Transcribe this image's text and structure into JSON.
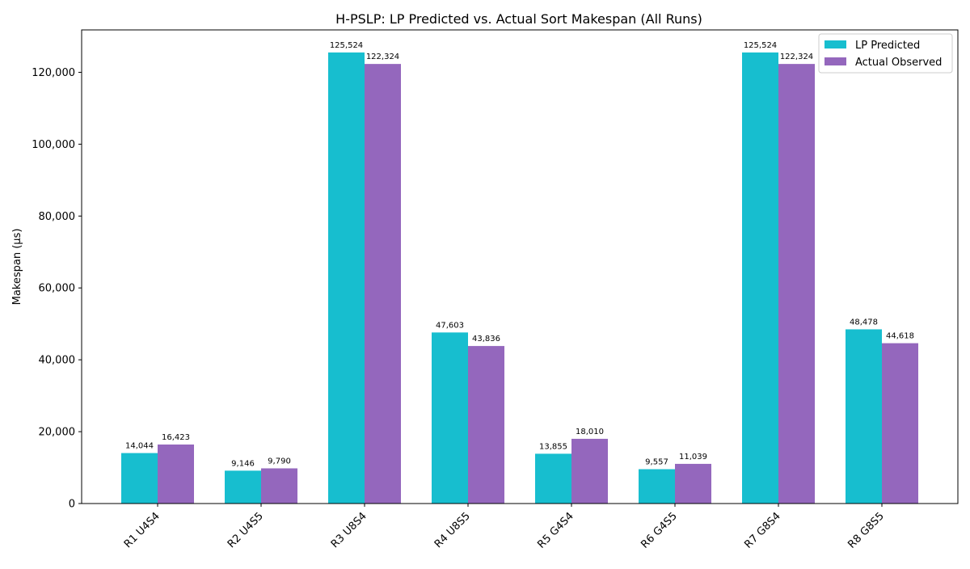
{
  "chart_data": {
    "type": "bar",
    "title": "H-PSLP: LP Predicted vs. Actual Sort Makespan (All Runs)",
    "xlabel": "",
    "ylabel": "Makespan (µs)",
    "ylim": [
      0,
      131800
    ],
    "yticks": [
      0,
      20000,
      40000,
      60000,
      80000,
      100000,
      120000
    ],
    "ytick_labels": [
      "0",
      "20,000",
      "40,000",
      "60,000",
      "80,000",
      "100,000",
      "120,000"
    ],
    "categories": [
      "R1 U4S4",
      "R2 U4S5",
      "R3 U8S4",
      "R4 U8S5",
      "R5 G4S4",
      "R6 G4S5",
      "R7 G8S4",
      "R8 G8S5"
    ],
    "series": [
      {
        "name": "LP Predicted",
        "color": "#17becf",
        "values": [
          14044,
          9146,
          125524,
          47603,
          13855,
          9557,
          125524,
          48478
        ],
        "labels": [
          "14,044",
          "9,146",
          "125,524",
          "47,603",
          "13,855",
          "9,557",
          "125,524",
          "48,478"
        ]
      },
      {
        "name": "Actual Observed",
        "color": "#9467bd",
        "values": [
          16423,
          9790,
          122324,
          43836,
          18010,
          11039,
          122324,
          44618
        ],
        "labels": [
          "16,423",
          "9,790",
          "122,324",
          "43,836",
          "18,010",
          "11,039",
          "122,324",
          "44,618"
        ]
      }
    ],
    "legend": "top-right",
    "grid": false
  }
}
